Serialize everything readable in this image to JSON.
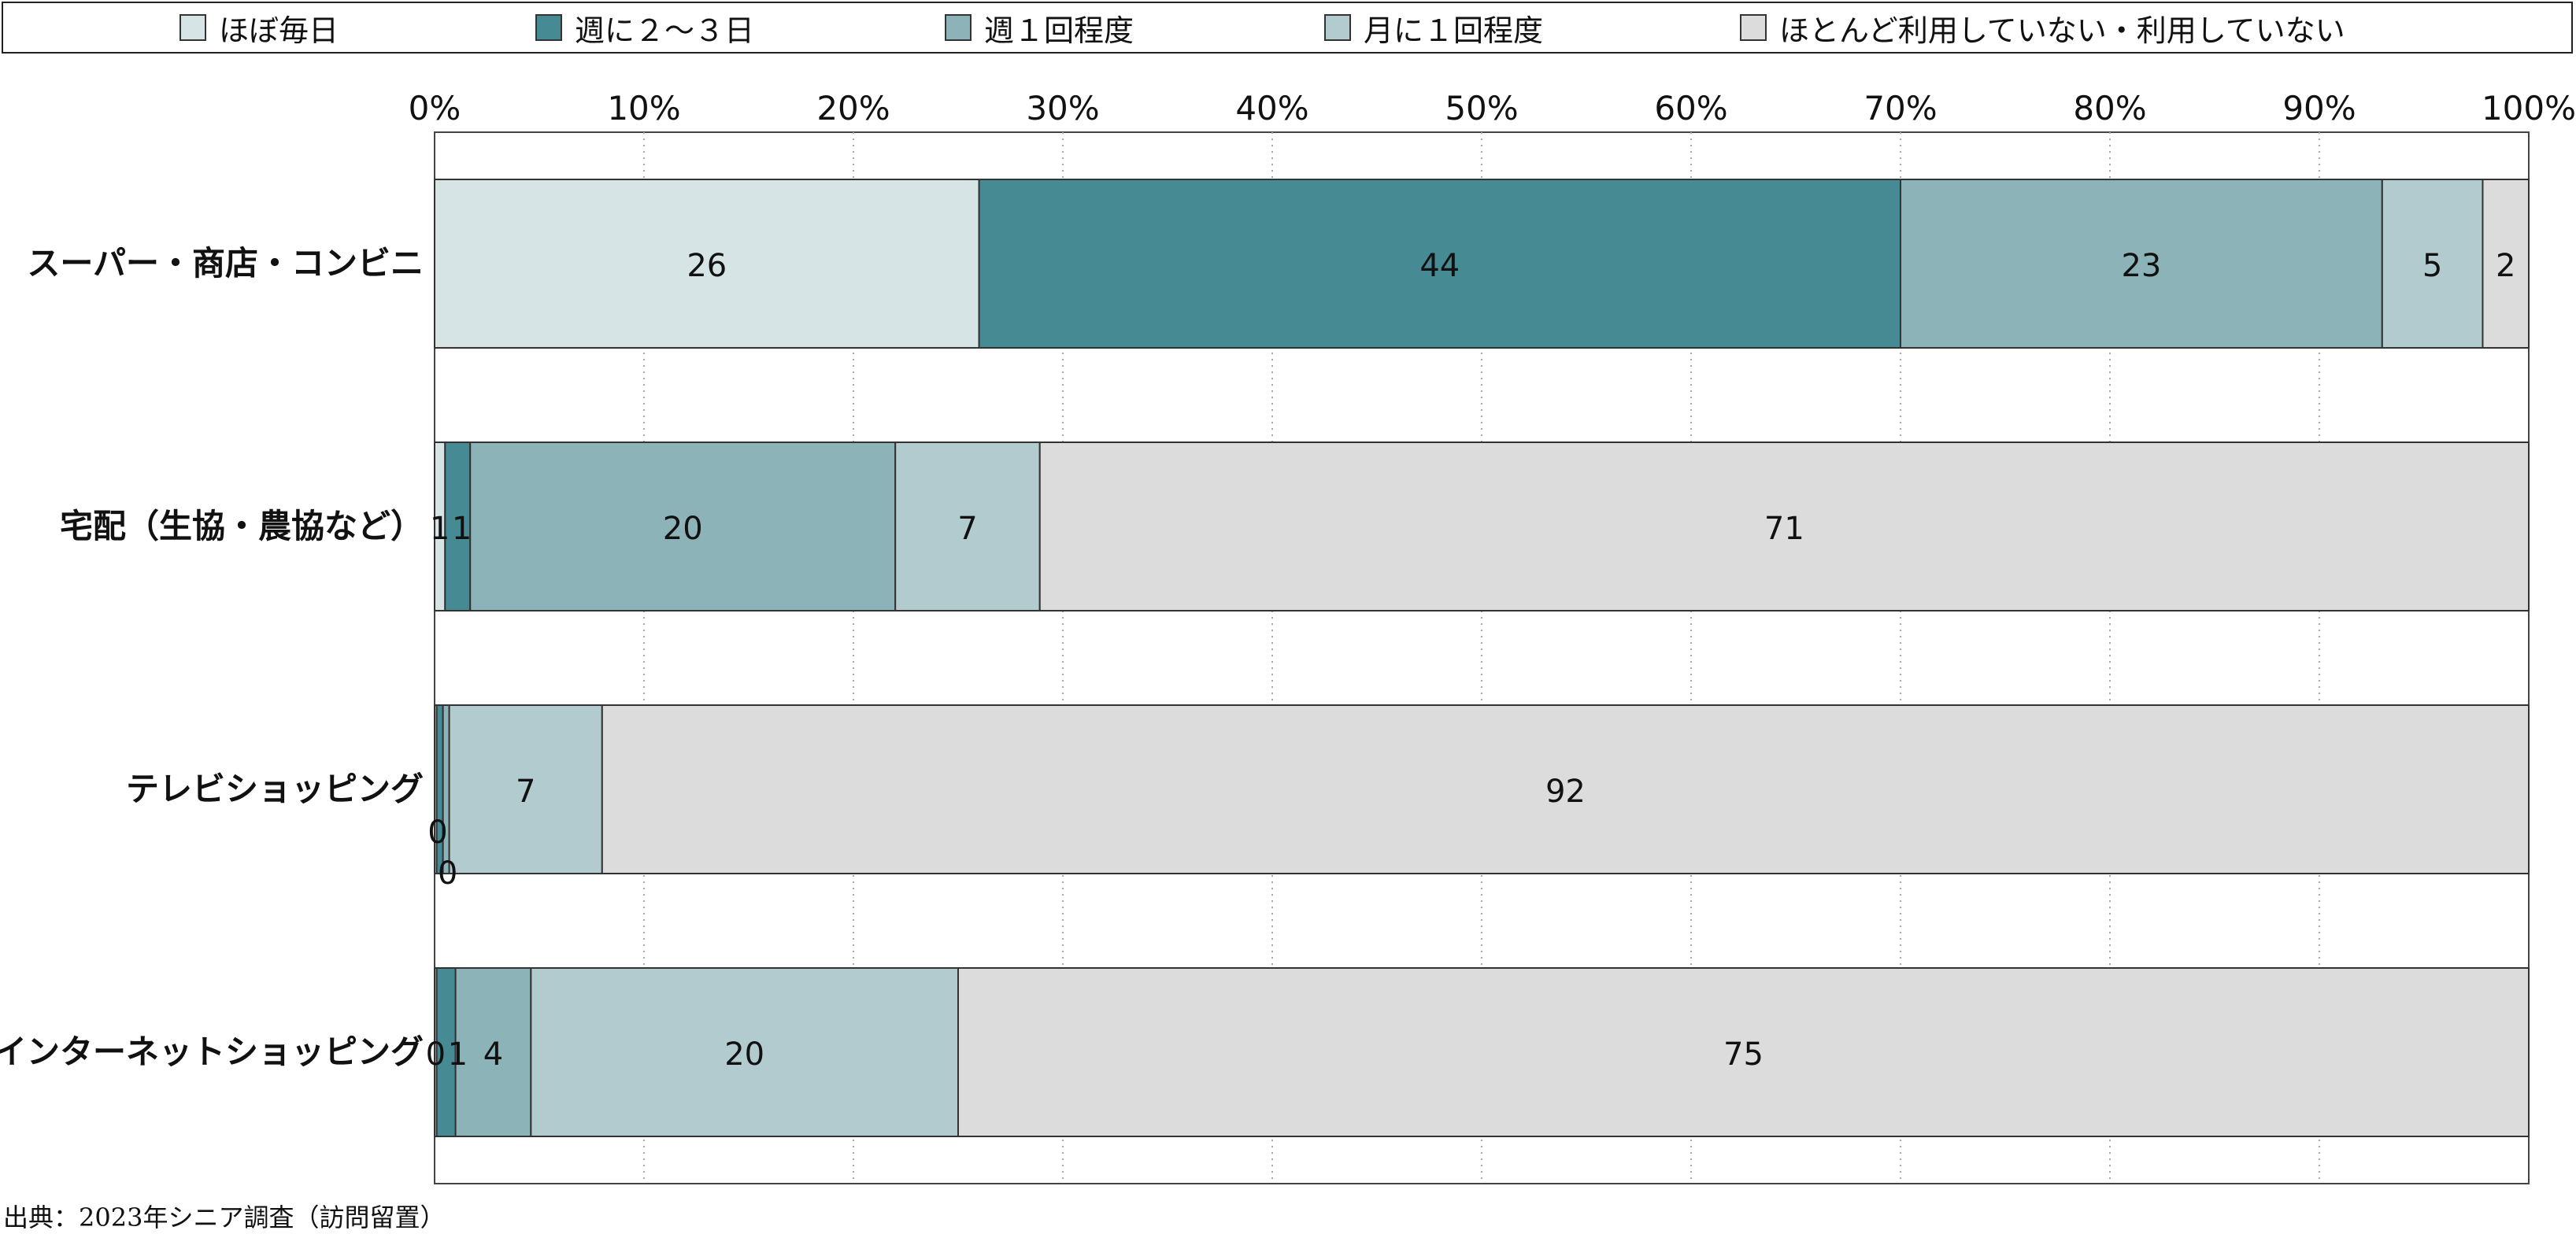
{
  "chart_data": {
    "type": "bar",
    "orientation": "horizontal",
    "stacked": true,
    "categories": [
      "スーパー・商店・コンビニ",
      "宅配（生協・農協など）",
      "テレビショッピング",
      "インターネットショッピング"
    ],
    "series": [
      {
        "name": "ほぼ毎日",
        "color": "#d6e4e6",
        "values": [
          26,
          0.5,
          0.1,
          0.1
        ]
      },
      {
        "name": "週に２～３日",
        "color": "#468a93",
        "values": [
          44,
          1.2,
          0.3,
          0.9
        ]
      },
      {
        "name": "週１回程度",
        "color": "#8cb3b7",
        "values": [
          23,
          20.3,
          0.3,
          3.6
        ]
      },
      {
        "name": "月に１回程度",
        "color": "#b1cbcf",
        "values": [
          4.8,
          6.9,
          7.3,
          20.4
        ]
      },
      {
        "name": "ほとんど利用していない・利用していない",
        "color": "#dcdcdc",
        "values": [
          2.2,
          71.1,
          92,
          75
        ]
      }
    ],
    "labels": [
      [
        "26",
        "44",
        "23",
        "5",
        "2"
      ],
      [
        "1",
        "1",
        "20",
        "7",
        "71"
      ],
      [
        "0",
        "0",
        "",
        "7",
        "92"
      ],
      [
        "0",
        "1",
        "4",
        "20",
        "75"
      ]
    ],
    "xlim": [
      0,
      100
    ],
    "xticks": [
      "0%",
      "10%",
      "20%",
      "30%",
      "40%",
      "50%",
      "60%",
      "70%",
      "80%",
      "90%",
      "100%"
    ],
    "legend_position": "top",
    "grid": "vertical-dotted"
  },
  "source": "出典：2023年シニア調査（訪問留置）"
}
